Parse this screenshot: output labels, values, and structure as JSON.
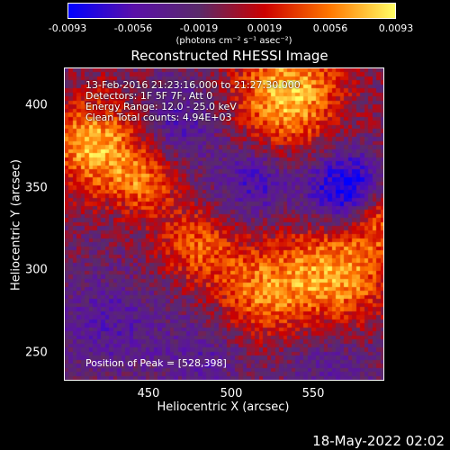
{
  "colorbar": {
    "ticks": [
      "-0.0093",
      "-0.0056",
      "-0.0019",
      "0.0019",
      "0.0056",
      "0.0093"
    ],
    "unit_label": "(photons cm⁻² s⁻¹ asec⁻²)",
    "colors": [
      "#0000ff",
      "#5a10a8",
      "#5a2a6a",
      "#cc0000",
      "#ff7700",
      "#ffff66"
    ]
  },
  "title": "Reconstructed RHESSI Image",
  "info": {
    "line1": "13-Feb-2016 21:23:16.000 to 21:27:30.000",
    "line2": "Detectors: 1F 5F 7F, Att 0",
    "line3": "Energy Range: 12.0 - 25.0 keV",
    "line4": "Clean     Total counts: 4.94E+03"
  },
  "peak_text": "Position of Peak = [528,398]",
  "axes": {
    "xlabel": "Heliocentric X (arcsec)",
    "ylabel": "Heliocentric Y (arcsec)",
    "xticks": [
      "450",
      "500",
      "550"
    ],
    "yticks": [
      "400",
      "350",
      "300",
      "250"
    ]
  },
  "footer": {
    "timestamp": "18-May-2022 02:02"
  },
  "chart_data": {
    "type": "heatmap",
    "title": "Reconstructed RHESSI Image",
    "xlabel": "Heliocentric X (arcsec)",
    "ylabel": "Heliocentric Y (arcsec)",
    "xlim": [
      402,
      592
    ],
    "ylim": [
      232,
      418
    ],
    "vmin": -0.0093,
    "vmax": 0.0093,
    "peak": [
      528,
      398
    ],
    "sources": [
      {
        "x": 535,
        "y": 402,
        "value": 0.0093,
        "sigma": 22
      },
      {
        "x": 420,
        "y": 372,
        "value": 0.0085,
        "sigma": 20
      },
      {
        "x": 450,
        "y": 350,
        "value": 0.0055,
        "sigma": 14
      },
      {
        "x": 565,
        "y": 295,
        "value": 0.008,
        "sigma": 22
      },
      {
        "x": 520,
        "y": 285,
        "value": 0.0065,
        "sigma": 20
      },
      {
        "x": 480,
        "y": 312,
        "value": 0.0055,
        "sigma": 16
      },
      {
        "x": 590,
        "y": 330,
        "value": 0.006,
        "sigma": 14
      },
      {
        "x": 570,
        "y": 345,
        "value": -0.0093,
        "sigma": 16
      },
      {
        "x": 515,
        "y": 350,
        "value": -0.005,
        "sigma": 16
      },
      {
        "x": 470,
        "y": 385,
        "value": -0.004,
        "sigma": 18
      },
      {
        "x": 430,
        "y": 265,
        "value": -0.0035,
        "sigma": 24
      },
      {
        "x": 485,
        "y": 245,
        "value": -0.003,
        "sigma": 18
      },
      {
        "x": 560,
        "y": 240,
        "value": -0.003,
        "sigma": 20
      }
    ]
  }
}
